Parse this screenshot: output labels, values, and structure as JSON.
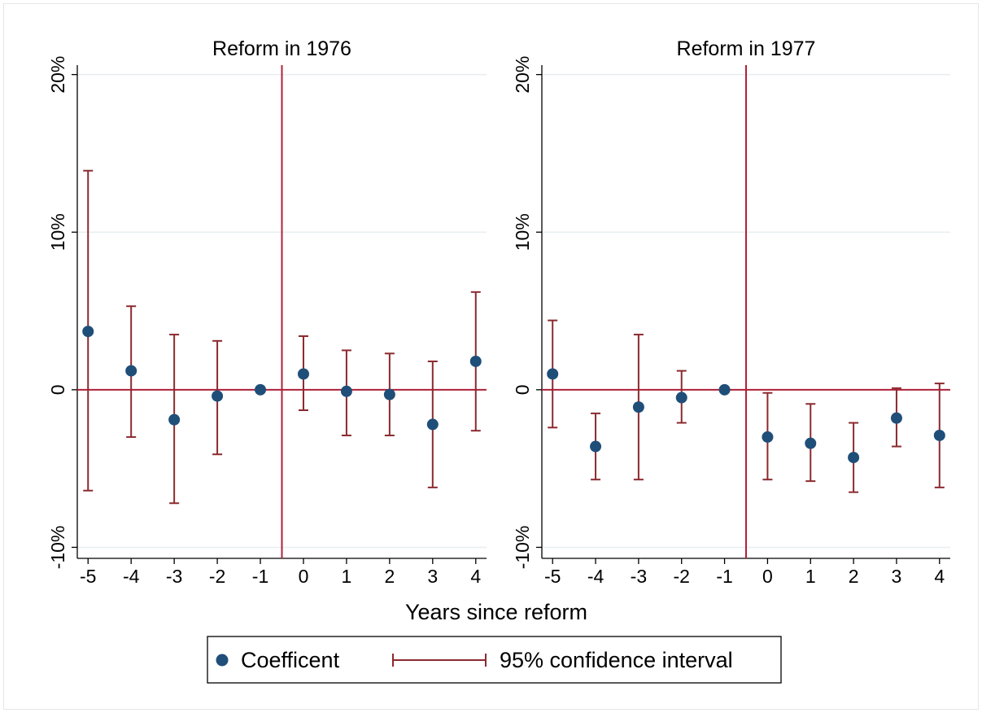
{
  "chart_data": {
    "type": "scatter",
    "x_axis_title": "Years since reform",
    "x": [
      -5,
      -4,
      -3,
      -2,
      -1,
      0,
      1,
      2,
      3,
      4
    ],
    "x_tick_labels": [
      "-5",
      "-4",
      "-3",
      "-2",
      "-1",
      "0",
      "1",
      "2",
      "3",
      "4"
    ],
    "y_ticks": [
      -10,
      0,
      10,
      20
    ],
    "y_tick_labels": [
      "-10%",
      "0",
      "10%",
      "20%"
    ],
    "ylim": [
      -10.7,
      20.6
    ],
    "xlim": [
      -5.25,
      4.25
    ],
    "reference_lines": {
      "vertical_x": -0.5,
      "horizontal_y": 0
    },
    "grid": true,
    "legend": {
      "position": "bottom",
      "items": [
        "Coefficent",
        "95% confidence interval"
      ]
    },
    "colors": {
      "coefficient": "#1f4e79",
      "ci": "#8b2a2f",
      "reference": "#b0203a",
      "grid": "#e8eef0"
    },
    "panels": [
      {
        "title": "Reform in 1976",
        "series": [
          {
            "name": "Coefficent",
            "values": [
              3.7,
              1.2,
              -1.9,
              -0.4,
              0.0,
              1.0,
              -0.1,
              -0.3,
              -2.2,
              1.8
            ]
          },
          {
            "name": "95% confidence interval",
            "lower": [
              -6.4,
              -3.0,
              -7.2,
              -4.1,
              0.0,
              -1.3,
              -2.9,
              -2.9,
              -6.2,
              -2.6
            ],
            "upper": [
              13.9,
              5.3,
              3.5,
              3.1,
              0.0,
              3.4,
              2.5,
              2.3,
              1.8,
              6.2
            ]
          }
        ]
      },
      {
        "title": "Reform in 1977",
        "series": [
          {
            "name": "Coefficent",
            "values": [
              1.0,
              -3.6,
              -1.1,
              -0.5,
              0.0,
              -3.0,
              -3.4,
              -4.3,
              -1.8,
              -2.9
            ]
          },
          {
            "name": "95% confidence interval",
            "lower": [
              -2.4,
              -5.7,
              -5.7,
              -2.1,
              0.0,
              -5.7,
              -5.8,
              -6.5,
              -3.6,
              -6.2
            ],
            "upper": [
              4.4,
              -1.5,
              3.5,
              1.2,
              0.0,
              -0.2,
              -0.9,
              -2.1,
              0.1,
              0.4
            ]
          }
        ]
      }
    ]
  }
}
